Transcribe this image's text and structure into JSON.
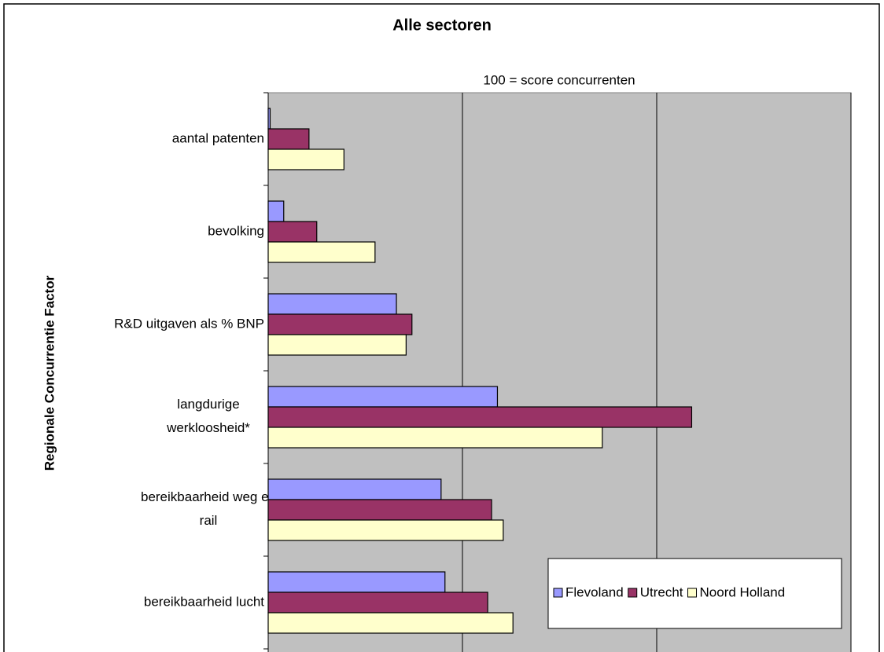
{
  "chart_data": {
    "type": "hbar",
    "title": "Alle sectoren",
    "subtitle": "100 = score concurrenten",
    "ylabel": "Regionale Concurrentie Factor",
    "categories": [
      "aantal patenten",
      "bevolking",
      "R&D uitgaven als % BNP",
      "langdurige\nwerkloosheid*",
      "bereikbaarheid weg en\nrail",
      "bereikbaarheid lucht"
    ],
    "series": [
      {
        "name": "Flevoland",
        "color": "#9999ff",
        "values": [
          1,
          8,
          66,
          118,
          89,
          91
        ]
      },
      {
        "name": "Utrecht",
        "color": "#993366",
        "values": [
          21,
          25,
          74,
          218,
          115,
          113
        ]
      },
      {
        "name": "Noord Holland",
        "color": "#ffffcc",
        "values": [
          39,
          55,
          71,
          172,
          121,
          126
        ]
      }
    ],
    "xlim": [
      0,
      300
    ],
    "xticks": [
      0,
      100,
      200,
      300
    ],
    "grid": true,
    "legend": "lower right"
  }
}
